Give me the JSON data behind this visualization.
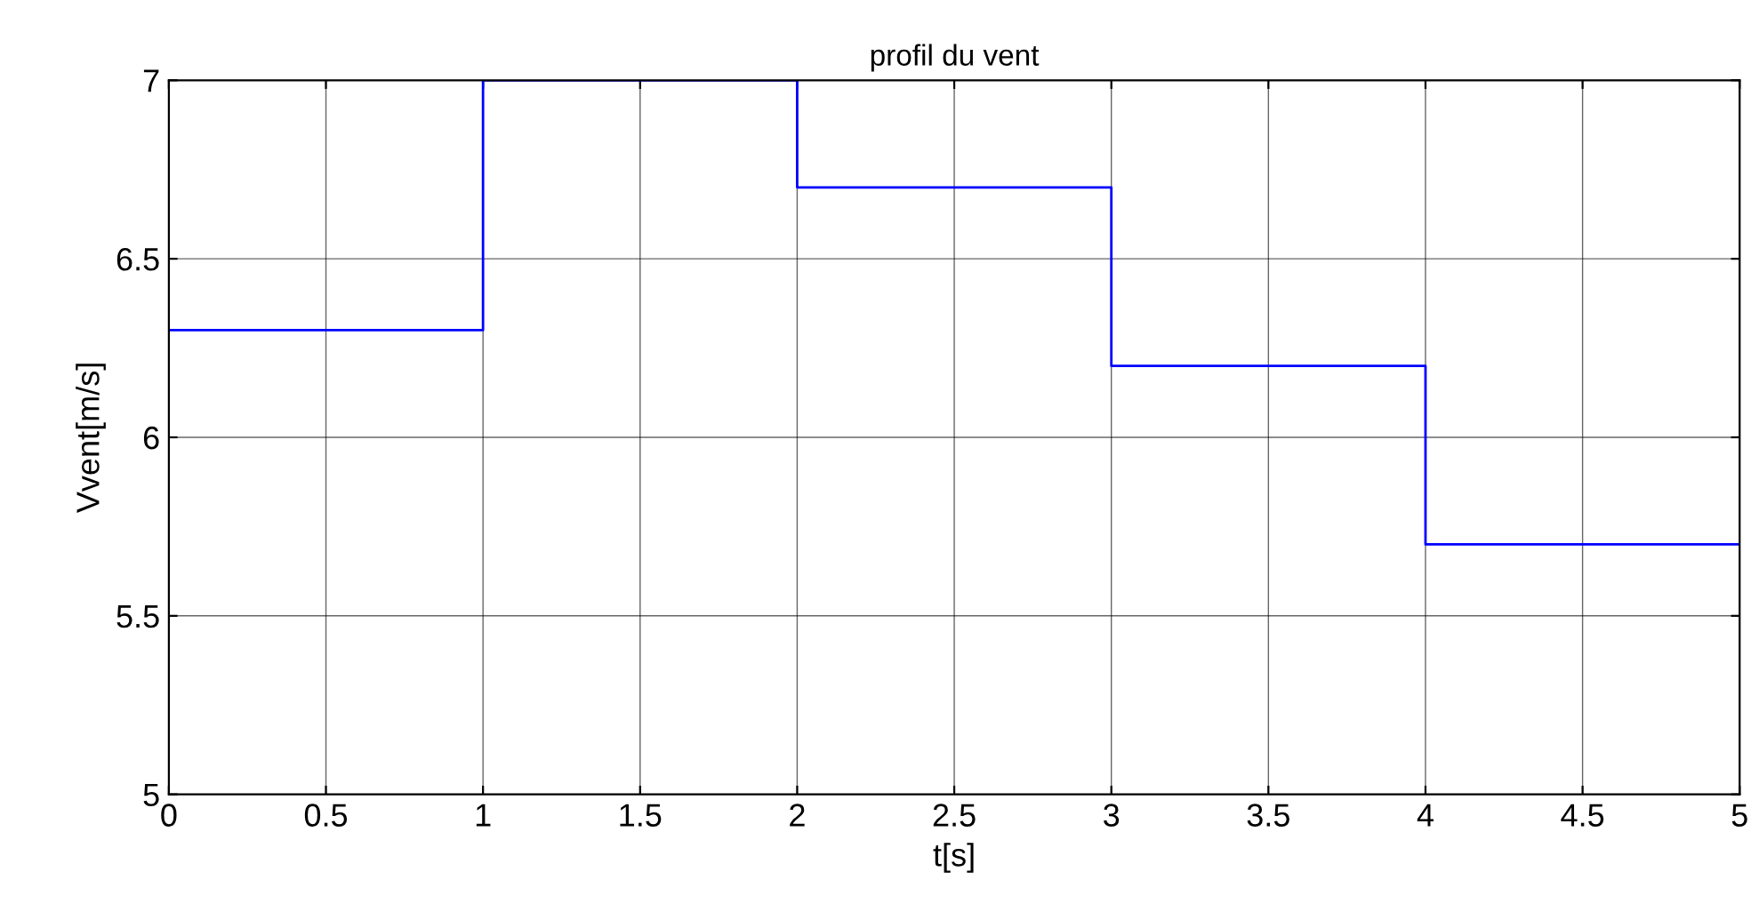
{
  "chart_data": {
    "type": "step",
    "title": "profil du vent",
    "xlabel": "t[s]",
    "ylabel": "Vvent[m/s]",
    "x": [
      0,
      1,
      2,
      3,
      4,
      5
    ],
    "series": [
      {
        "color": "#0000ff",
        "values": [
          6.3,
          7.0,
          6.7,
          6.2,
          5.7,
          5.7
        ]
      }
    ],
    "xlim": [
      0,
      5
    ],
    "xticks": [
      0,
      0.5,
      1,
      1.5,
      2,
      2.5,
      3,
      3.5,
      4,
      4.5,
      5
    ],
    "ylim": [
      5,
      7
    ],
    "yticks": [
      5,
      5.5,
      6,
      6.5,
      7
    ],
    "grid": true
  }
}
